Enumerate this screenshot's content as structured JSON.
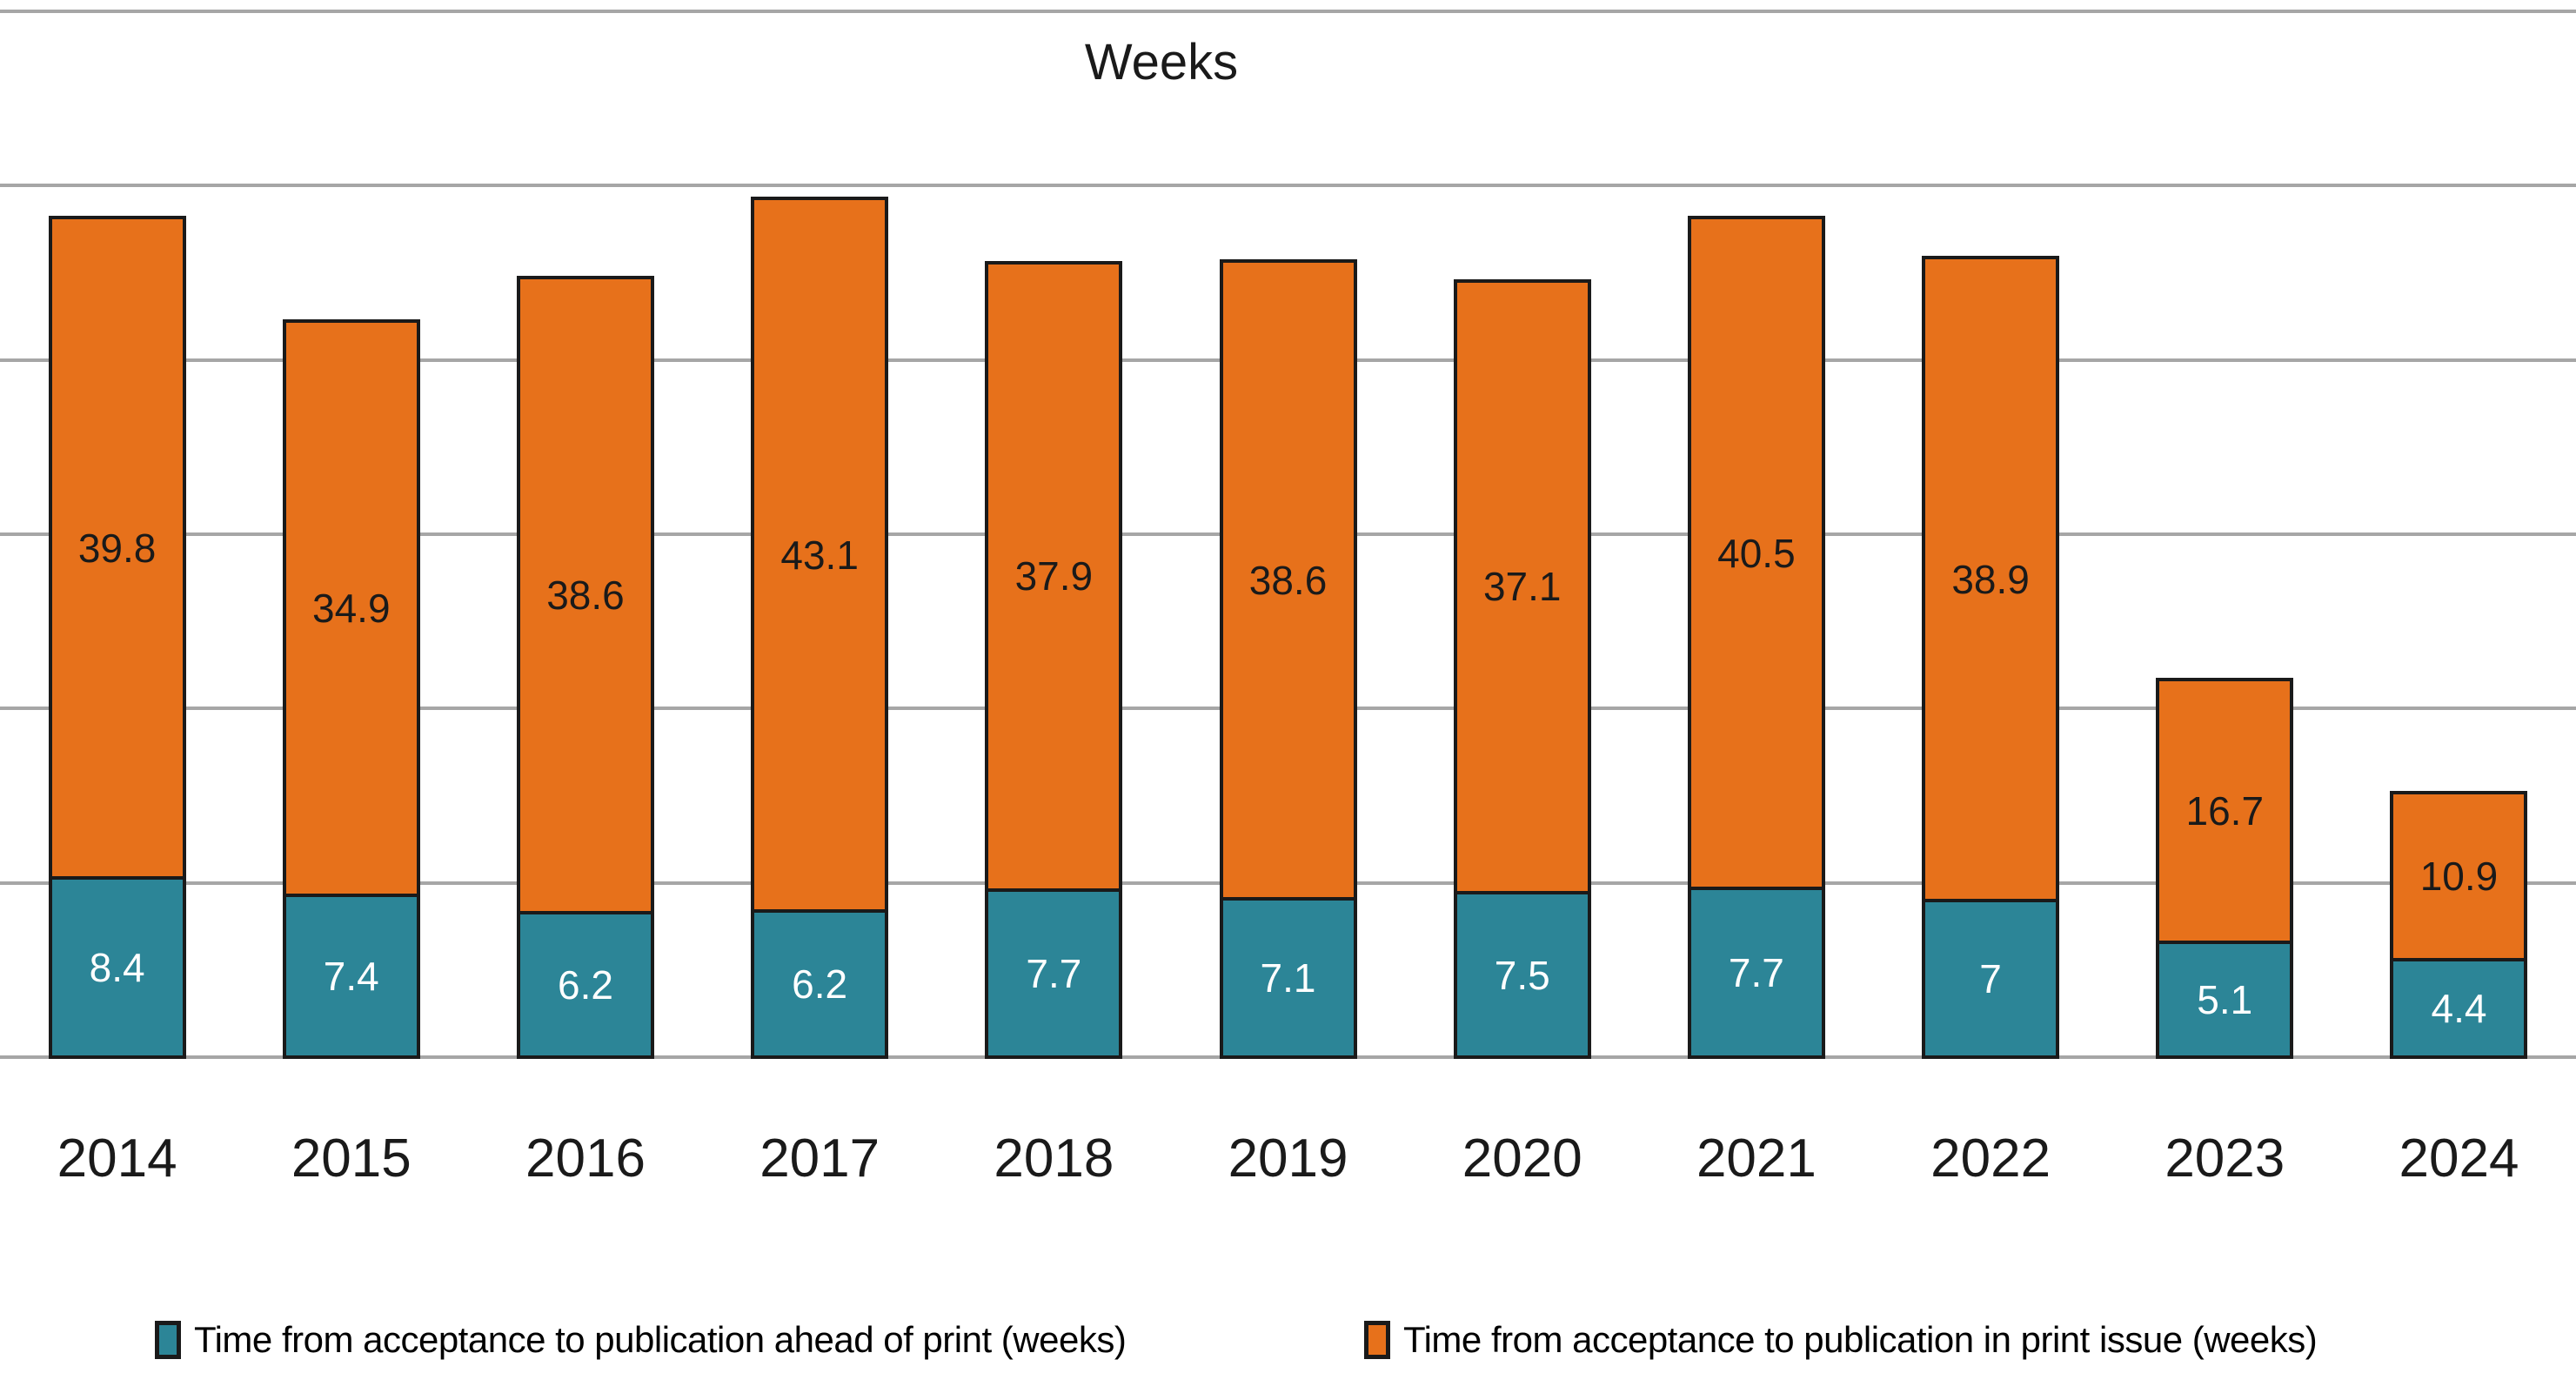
{
  "chart_data": {
    "type": "bar",
    "stacked": true,
    "title": "Weeks",
    "categories": [
      "2014",
      "2015",
      "2016",
      "2017",
      "2018",
      "2019",
      "2020",
      "2021",
      "2022",
      "2023",
      "2024"
    ],
    "series": [
      {
        "name": "Time from acceptance to publication ahead of print (weeks)",
        "color": "#2C8597",
        "label_color": "#FFFFFF",
        "values": [
          8.4,
          7.4,
          6.2,
          6.2,
          7.7,
          7.1,
          7.5,
          7.7,
          7,
          5.1,
          4.4
        ]
      },
      {
        "name": "Time from acceptance to publication in print issue (weeks)",
        "color": "#E7711B",
        "label_color": "#1A1A1A",
        "values": [
          39.8,
          34.9,
          38.6,
          43.1,
          37.9,
          38.6,
          37.1,
          40.5,
          38.9,
          16.7,
          10.9
        ]
      }
    ],
    "xlabel": "",
    "ylabel": "",
    "ylim": [
      0,
      60
    ],
    "y_step": 10,
    "y_tick_labels_visible": false,
    "grid": true,
    "gridline_color": "#A6A6A6",
    "bar_border_color": "#1A1A1A",
    "legend_position": "bottom"
  }
}
